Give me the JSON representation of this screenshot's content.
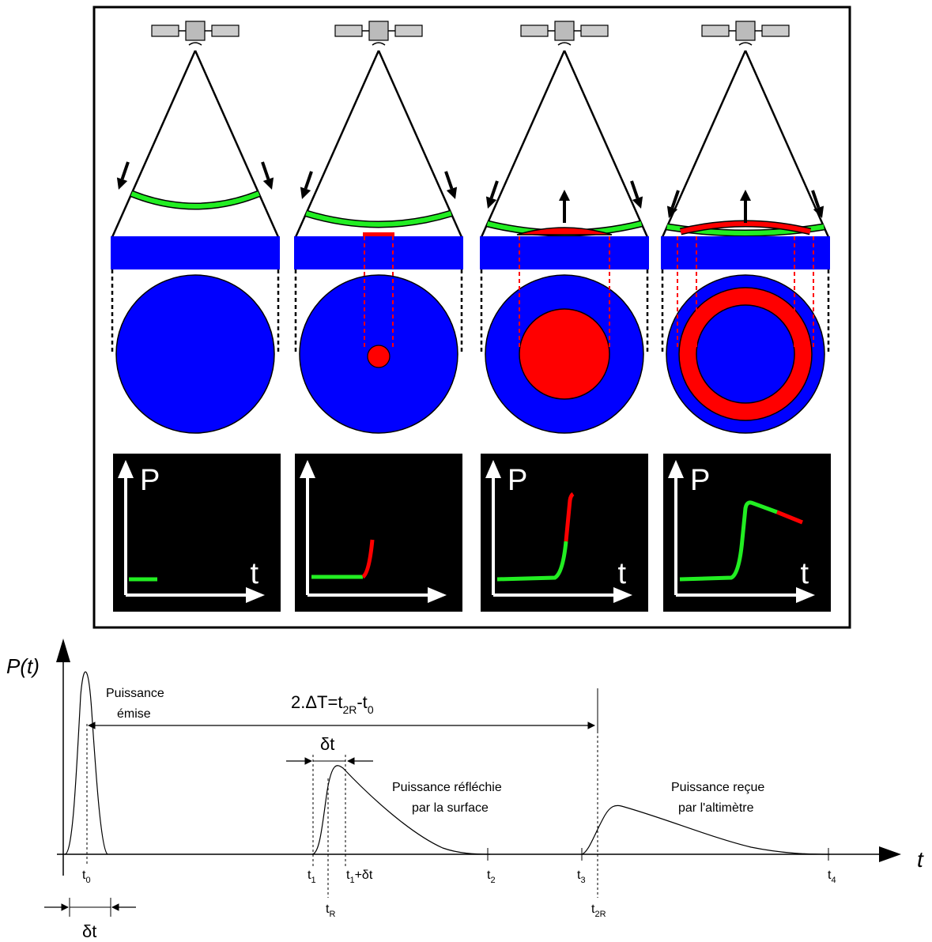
{
  "colors": {
    "water": "#0000ff",
    "echo": "#ff0000",
    "wavefront": "#22ee22",
    "panel_bg": "#000000",
    "panel_axes": "#ffffff",
    "line": "#000000"
  },
  "icons": {
    "satellite": "satellite-icon",
    "arrow_down": "arrow-down-icon",
    "arrow_up": "arrow-up-icon"
  },
  "panels": [
    {
      "axis_p": "P",
      "axis_t": "t",
      "echo_fraction": 0.0
    },
    {
      "axis_p": "",
      "axis_t": "",
      "echo_fraction": 0.15
    },
    {
      "axis_p": "P",
      "axis_t": "t",
      "echo_fraction": 0.55
    },
    {
      "axis_p": "P",
      "axis_t": "t",
      "echo_fraction": 1.0
    }
  ],
  "waveform": {
    "y_label": "P(t)",
    "x_label": "t",
    "delta_T": {
      "main": "2.ΔT=t",
      "sub1": "2R",
      "mid": "-t",
      "sub2": "0"
    },
    "emitted": {
      "line1": "Puissance",
      "line2": "émise"
    },
    "reflected": {
      "line1": "Puissance réfléchie",
      "line2": "par la surface"
    },
    "received": {
      "line1": "Puissance reçue",
      "line2": "par l'altimètre"
    },
    "delta_t": "δt",
    "ticks": {
      "t0": {
        "base": "t",
        "sub": "0"
      },
      "t1": {
        "base": "t",
        "sub": "1"
      },
      "t1dt": {
        "base": "t",
        "sub": "1",
        "tail": "+δt"
      },
      "t2": {
        "base": "t",
        "sub": "2"
      },
      "t3": {
        "base": "t",
        "sub": "3"
      },
      "t4": {
        "base": "t",
        "sub": "4"
      },
      "tR": {
        "base": "t",
        "sub": "R"
      },
      "t2R": {
        "base": "t",
        "sub": "2R"
      }
    }
  }
}
